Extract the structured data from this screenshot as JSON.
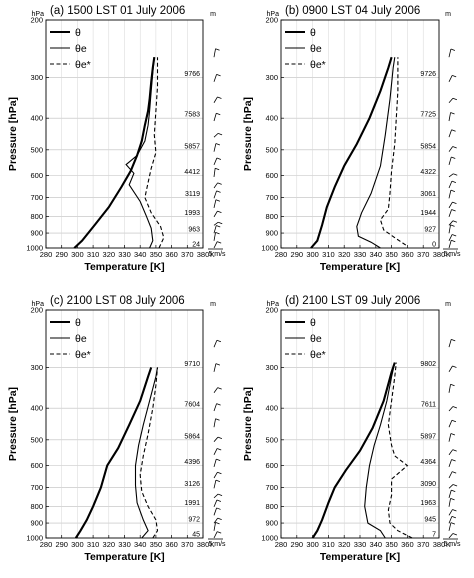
{
  "chart_data": [
    {
      "type": "line",
      "title": "(a) 1500 LST 01 July 2006",
      "xlabel": "Temperature [K]",
      "ylabel": "Pressure [hPa]",
      "xlim": [
        280,
        380
      ],
      "ylim": [
        1000,
        200
      ],
      "yscale": "log",
      "x_ticks": [
        280,
        290,
        300,
        310,
        320,
        330,
        340,
        350,
        360,
        370,
        380
      ],
      "y_ticks": [
        200,
        300,
        400,
        500,
        600,
        700,
        800,
        900,
        1000
      ],
      "unit_x": "K",
      "unit_y": "hPa",
      "height_unit": "m",
      "heights": [
        {
          "p": 300,
          "label": "9766"
        },
        {
          "p": 400,
          "label": "7583"
        },
        {
          "p": 500,
          "label": "5857"
        },
        {
          "p": 600,
          "label": "4412"
        },
        {
          "p": 700,
          "label": "3119"
        },
        {
          "p": 800,
          "label": "1993"
        },
        {
          "p": 900,
          "label": "963"
        },
        {
          "p": 1000,
          "label": "24"
        }
      ],
      "wind_scale_label": "5 m/s",
      "legend_position": "top-left",
      "series": [
        {
          "name": "θ",
          "style": "bold",
          "points": [
            [
              298,
              1000
            ],
            [
              303,
              950
            ],
            [
              311,
              850
            ],
            [
              320,
              750
            ],
            [
              328,
              650
            ],
            [
              334,
              580
            ],
            [
              338,
              520
            ],
            [
              341,
              470
            ],
            [
              343,
              420
            ],
            [
              345,
              380
            ],
            [
              346,
              350
            ],
            [
              347,
              310
            ],
            [
              348,
              280
            ],
            [
              349,
              260
            ]
          ]
        },
        {
          "name": "θe",
          "style": "thin",
          "points": [
            [
              346,
              1000
            ],
            [
              348,
              950
            ],
            [
              347,
              870
            ],
            [
              344,
              800
            ],
            [
              340,
              720
            ],
            [
              333,
              640
            ],
            [
              336,
              590
            ],
            [
              331,
              555
            ],
            [
              338,
              520
            ],
            [
              343,
              470
            ],
            [
              345,
              420
            ],
            [
              346,
              380
            ],
            [
              347,
              330
            ],
            [
              348,
              290
            ],
            [
              349,
              260
            ]
          ]
        },
        {
          "name": "θe*",
          "style": "dashed",
          "points": [
            [
              352,
              1000
            ],
            [
              355,
              930
            ],
            [
              353,
              860
            ],
            [
              347,
              780
            ],
            [
              343,
              700
            ],
            [
              345,
              630
            ],
            [
              347,
              570
            ],
            [
              350,
              510
            ],
            [
              349,
              450
            ],
            [
              350,
              380
            ],
            [
              351,
              320
            ],
            [
              351,
              280
            ],
            [
              351,
              260
            ]
          ]
        }
      ]
    },
    {
      "type": "line",
      "title": "(b) 0900 LST 04 July 2006",
      "xlabel": "Temperature [K]",
      "ylabel": "Pressure [hPa]",
      "xlim": [
        280,
        380
      ],
      "ylim": [
        1000,
        200
      ],
      "yscale": "log",
      "x_ticks": [
        280,
        290,
        300,
        310,
        320,
        330,
        340,
        350,
        360,
        370,
        380
      ],
      "y_ticks": [
        200,
        300,
        400,
        500,
        600,
        700,
        800,
        900,
        1000
      ],
      "unit_x": "K",
      "unit_y": "hPa",
      "height_unit": "m",
      "heights": [
        {
          "p": 300,
          "label": "9726"
        },
        {
          "p": 400,
          "label": "7725"
        },
        {
          "p": 500,
          "label": "5854"
        },
        {
          "p": 600,
          "label": "4322"
        },
        {
          "p": 700,
          "label": "3061"
        },
        {
          "p": 800,
          "label": "1944"
        },
        {
          "p": 900,
          "label": "927"
        },
        {
          "p": 1000,
          "label": "0"
        }
      ],
      "wind_scale_label": "5 m/s",
      "legend_position": "top-left",
      "series": [
        {
          "name": "θ",
          "style": "bold",
          "points": [
            [
              299,
              1000
            ],
            [
              303,
              950
            ],
            [
              306,
              850
            ],
            [
              309,
              750
            ],
            [
              314,
              650
            ],
            [
              320,
              560
            ],
            [
              328,
              480
            ],
            [
              336,
              400
            ],
            [
              343,
              330
            ],
            [
              348,
              280
            ],
            [
              350,
              260
            ]
          ]
        },
        {
          "name": "θe",
          "style": "thin",
          "points": [
            [
              343,
              1000
            ],
            [
              337,
              960
            ],
            [
              329,
              920
            ],
            [
              328,
              860
            ],
            [
              331,
              780
            ],
            [
              337,
              680
            ],
            [
              343,
              560
            ],
            [
              346,
              450
            ],
            [
              349,
              350
            ],
            [
              351,
              280
            ],
            [
              352,
              260
            ]
          ]
        },
        {
          "name": "θe*",
          "style": "dashed",
          "points": [
            [
              359,
              980
            ],
            [
              352,
              930
            ],
            [
              345,
              880
            ],
            [
              343,
              820
            ],
            [
              348,
              760
            ],
            [
              349,
              680
            ],
            [
              350,
              580
            ],
            [
              352,
              480
            ],
            [
              353,
              400
            ],
            [
              354,
              330
            ],
            [
              354,
              280
            ],
            [
              354,
              260
            ]
          ]
        }
      ]
    },
    {
      "type": "line",
      "title": "(c) 2100 LST 08 July 2006",
      "xlabel": "Temperature [K]",
      "ylabel": "Pressure [hPa]",
      "xlim": [
        280,
        380
      ],
      "ylim": [
        1000,
        200
      ],
      "yscale": "log",
      "x_ticks": [
        280,
        290,
        300,
        310,
        320,
        330,
        340,
        350,
        360,
        370,
        380
      ],
      "y_ticks": [
        200,
        300,
        400,
        500,
        600,
        700,
        800,
        900,
        1000
      ],
      "unit_x": "K",
      "unit_y": "hPa",
      "height_unit": "m",
      "heights": [
        {
          "p": 300,
          "label": "9710"
        },
        {
          "p": 400,
          "label": "7604"
        },
        {
          "p": 500,
          "label": "5864"
        },
        {
          "p": 600,
          "label": "4396"
        },
        {
          "p": 700,
          "label": "3126"
        },
        {
          "p": 800,
          "label": "1991"
        },
        {
          "p": 900,
          "label": "972"
        },
        {
          "p": 1000,
          "label": "45"
        }
      ],
      "wind_scale_label": "5 m/s",
      "legend_position": "top-left",
      "series": [
        {
          "name": "θ",
          "style": "bold",
          "points": [
            [
              299,
              1000
            ],
            [
              302,
              950
            ],
            [
              306,
              880
            ],
            [
              310,
              800
            ],
            [
              315,
              700
            ],
            [
              319,
              600
            ],
            [
              326,
              530
            ],
            [
              333,
              450
            ],
            [
              340,
              380
            ],
            [
              345,
              320
            ],
            [
              347,
              300
            ]
          ]
        },
        {
          "name": "θe",
          "style": "thin",
          "points": [
            [
              341,
              1000
            ],
            [
              345,
              950
            ],
            [
              342,
              880
            ],
            [
              338,
              780
            ],
            [
              337,
              690
            ],
            [
              337,
              600
            ],
            [
              339,
              520
            ],
            [
              342,
              450
            ],
            [
              346,
              380
            ],
            [
              350,
              320
            ],
            [
              351,
              300
            ]
          ]
        },
        {
          "name": "θe*",
          "style": "dashed",
          "points": [
            [
              348,
              1000
            ],
            [
              351,
              950
            ],
            [
              350,
              880
            ],
            [
              345,
              800
            ],
            [
              341,
              720
            ],
            [
              340,
              640
            ],
            [
              342,
              560
            ],
            [
              345,
              480
            ],
            [
              348,
              400
            ],
            [
              350,
              340
            ],
            [
              351,
              300
            ]
          ]
        }
      ]
    },
    {
      "type": "line",
      "title": "(d) 2100 LST 09 July 2006",
      "xlabel": "Temperature [K]",
      "ylabel": "Pressure [hPa]",
      "xlim": [
        280,
        380
      ],
      "ylim": [
        1000,
        200
      ],
      "yscale": "log",
      "x_ticks": [
        280,
        290,
        300,
        310,
        320,
        330,
        340,
        350,
        360,
        370,
        380
      ],
      "y_ticks": [
        200,
        300,
        400,
        500,
        600,
        700,
        800,
        900,
        1000
      ],
      "unit_x": "K",
      "unit_y": "hPa",
      "height_unit": "m",
      "heights": [
        {
          "p": 300,
          "label": "9802"
        },
        {
          "p": 400,
          "label": "7611"
        },
        {
          "p": 500,
          "label": "5897"
        },
        {
          "p": 600,
          "label": "4364"
        },
        {
          "p": 700,
          "label": "3090"
        },
        {
          "p": 800,
          "label": "1963"
        },
        {
          "p": 900,
          "label": "945"
        },
        {
          "p": 1000,
          "label": "7"
        }
      ],
      "wind_scale_label": "5 m/s",
      "legend_position": "top-left",
      "series": [
        {
          "name": "θ",
          "style": "bold",
          "points": [
            [
              300,
              1000
            ],
            [
              303,
              950
            ],
            [
              306,
              880
            ],
            [
              310,
              780
            ],
            [
              314,
              700
            ],
            [
              321,
              620
            ],
            [
              330,
              540
            ],
            [
              338,
              460
            ],
            [
              345,
              380
            ],
            [
              350,
              310
            ],
            [
              352,
              290
            ]
          ]
        },
        {
          "name": "θe",
          "style": "thin",
          "points": [
            [
              346,
              1000
            ],
            [
              343,
              950
            ],
            [
              335,
              900
            ],
            [
              333,
              800
            ],
            [
              334,
              700
            ],
            [
              336,
              600
            ],
            [
              339,
              520
            ],
            [
              343,
              450
            ],
            [
              347,
              380
            ],
            [
              350,
              320
            ],
            [
              352,
              290
            ]
          ]
        },
        {
          "name": "θe*",
          "style": "dashed",
          "points": [
            [
              363,
              1000
            ],
            [
              354,
              950
            ],
            [
              349,
              900
            ],
            [
              348,
              820
            ],
            [
              350,
              740
            ],
            [
              350,
              660
            ],
            [
              360,
              600
            ],
            [
              352,
              560
            ],
            [
              350,
              520
            ],
            [
              348,
              450
            ],
            [
              350,
              380
            ],
            [
              352,
              320
            ],
            [
              353,
              290
            ]
          ]
        }
      ]
    }
  ]
}
